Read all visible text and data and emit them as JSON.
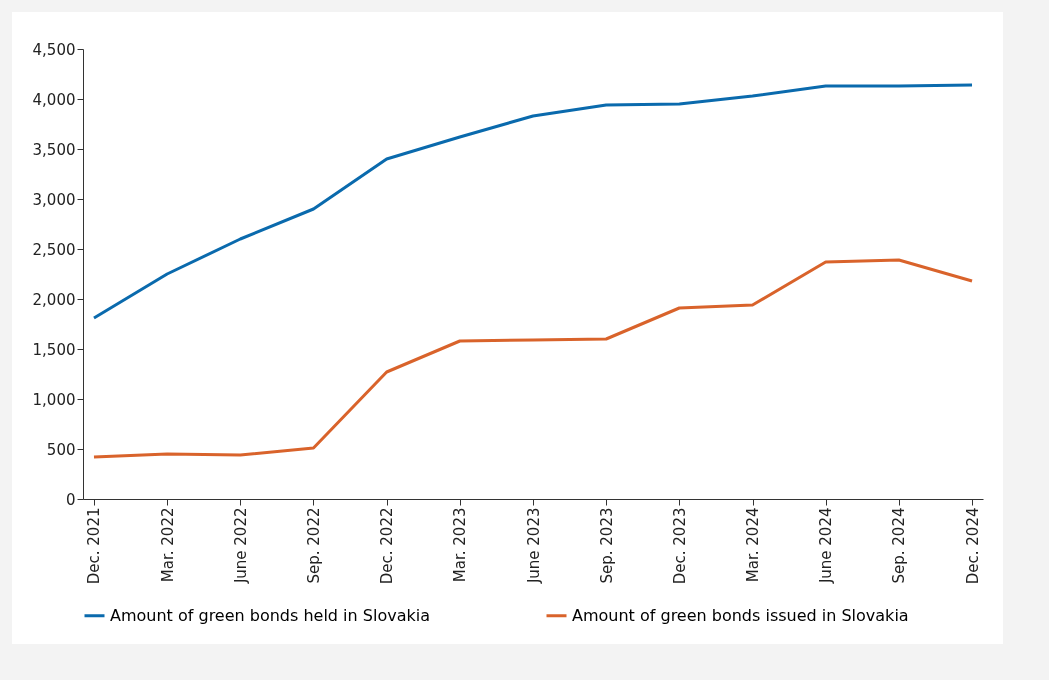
{
  "chart_data": {
    "type": "line",
    "categories": [
      "Dec. 2021",
      "Mar. 2022",
      "June 2022",
      "Sep. 2022",
      "Dec. 2022",
      "Mar. 2023",
      "June 2023",
      "Sep. 2023",
      "Dec. 2023",
      "Mar. 2024",
      "June 2024",
      "Sep. 2024",
      "Dec. 2024"
    ],
    "series": [
      {
        "name": "Amount of green bonds held in Slovakia",
        "color": "#0a6aad",
        "values": [
          1810,
          2250,
          2600,
          2900,
          3400,
          3620,
          3830,
          3940,
          3950,
          4030,
          4130,
          4130,
          4140
        ]
      },
      {
        "name": "Amount of green bonds issued in Slovakia",
        "color": "#d9632b",
        "values": [
          420,
          450,
          440,
          510,
          1270,
          1580,
          1590,
          1600,
          1910,
          1940,
          2370,
          2390,
          2180
        ]
      }
    ],
    "ylim": [
      0,
      4500
    ],
    "yticks": [
      0,
      {
        "value": 500,
        "label": "500"
      },
      {
        "value": 1000,
        "label": "1,000"
      },
      {
        "value": 1500,
        "label": "1,500"
      },
      {
        "value": 2000,
        "label": "2,000"
      },
      {
        "value": 2500,
        "label": "2,500"
      },
      {
        "value": 3000,
        "label": "3,000"
      },
      {
        "value": 3500,
        "label": "3,500"
      },
      {
        "value": 4000,
        "label": "4,000"
      },
      {
        "value": 4500,
        "label": "4,500"
      }
    ],
    "grid": false,
    "legend": "bottom",
    "marker": "none",
    "line_style": "solid"
  }
}
